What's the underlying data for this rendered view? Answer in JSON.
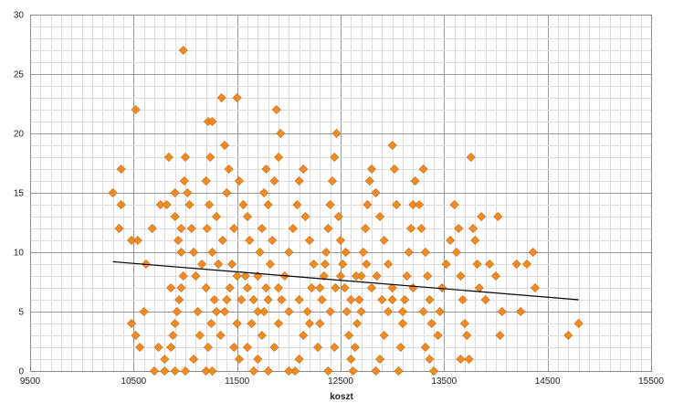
{
  "chart_data": {
    "type": "scatter",
    "title": "",
    "xlabel": "koszt",
    "ylabel": "",
    "xlim": [
      9500,
      15500
    ],
    "ylim": [
      0,
      30
    ],
    "x_ticks": [
      9500,
      10500,
      11500,
      12500,
      13500,
      14500,
      15500
    ],
    "y_ticks": [
      0,
      5,
      10,
      15,
      20,
      25,
      30
    ],
    "grid": true,
    "legend": "none",
    "marker_color": "#f08a24",
    "trendline": {
      "x": [
        10300,
        14800
      ],
      "y": [
        9.2,
        6.0
      ],
      "color": "#000000"
    },
    "points": [
      [
        10300,
        15
      ],
      [
        10380,
        17
      ],
      [
        10380,
        14
      ],
      [
        10360,
        12
      ],
      [
        10480,
        11
      ],
      [
        10540,
        11
      ],
      [
        10520,
        22
      ],
      [
        10620,
        9
      ],
      [
        10480,
        4
      ],
      [
        10520,
        3
      ],
      [
        10560,
        2
      ],
      [
        10600,
        5
      ],
      [
        10680,
        12
      ],
      [
        10760,
        14
      ],
      [
        10820,
        14
      ],
      [
        10840,
        18
      ],
      [
        10860,
        7
      ],
      [
        10900,
        15
      ],
      [
        10900,
        13
      ],
      [
        10930,
        11
      ],
      [
        10960,
        12
      ],
      [
        10960,
        10
      ],
      [
        10980,
        27
      ],
      [
        11000,
        18
      ],
      [
        10990,
        16
      ],
      [
        11020,
        15
      ],
      [
        11040,
        14
      ],
      [
        11060,
        12
      ],
      [
        11080,
        10
      ],
      [
        11100,
        8
      ],
      [
        10980,
        8
      ],
      [
        10960,
        7
      ],
      [
        10940,
        6
      ],
      [
        10920,
        5
      ],
      [
        10900,
        4
      ],
      [
        10880,
        3
      ],
      [
        10860,
        2
      ],
      [
        10800,
        1
      ],
      [
        10740,
        2
      ],
      [
        10700,
        0
      ],
      [
        10800,
        0
      ],
      [
        10900,
        0
      ],
      [
        11000,
        0
      ],
      [
        11080,
        1
      ],
      [
        11140,
        3
      ],
      [
        11120,
        5
      ],
      [
        11160,
        9
      ],
      [
        11200,
        7
      ],
      [
        11220,
        21
      ],
      [
        11260,
        21
      ],
      [
        11240,
        18
      ],
      [
        11200,
        16
      ],
      [
        11230,
        14
      ],
      [
        11210,
        12
      ],
      [
        11260,
        10
      ],
      [
        11300,
        13
      ],
      [
        11350,
        23
      ],
      [
        11380,
        19
      ],
      [
        11420,
        17
      ],
      [
        11400,
        15
      ],
      [
        11360,
        11
      ],
      [
        11320,
        9
      ],
      [
        11280,
        6
      ],
      [
        11250,
        4
      ],
      [
        11220,
        2
      ],
      [
        11200,
        0
      ],
      [
        11260,
        0
      ],
      [
        11340,
        3
      ],
      [
        11380,
        5
      ],
      [
        11430,
        7
      ],
      [
        11450,
        9
      ],
      [
        11470,
        12
      ],
      [
        11500,
        23
      ],
      [
        11520,
        16
      ],
      [
        11560,
        14
      ],
      [
        11600,
        13
      ],
      [
        11620,
        11
      ],
      [
        11580,
        8
      ],
      [
        11540,
        6
      ],
      [
        11500,
        4
      ],
      [
        11470,
        2
      ],
      [
        11520,
        1
      ],
      [
        11600,
        2
      ],
      [
        11640,
        4
      ],
      [
        11660,
        6
      ],
      [
        11700,
        8
      ],
      [
        11720,
        10
      ],
      [
        11740,
        12
      ],
      [
        11760,
        15
      ],
      [
        11780,
        17
      ],
      [
        11800,
        14
      ],
      [
        11840,
        11
      ],
      [
        11880,
        22
      ],
      [
        11920,
        20
      ],
      [
        11900,
        18
      ],
      [
        11860,
        16
      ],
      [
        11820,
        9
      ],
      [
        11780,
        7
      ],
      [
        11760,
        5
      ],
      [
        11740,
        3
      ],
      [
        11700,
        1
      ],
      [
        11660,
        0
      ],
      [
        11800,
        0
      ],
      [
        11860,
        2
      ],
      [
        11900,
        4
      ],
      [
        11930,
        6
      ],
      [
        11960,
        8
      ],
      [
        12000,
        10
      ],
      [
        12040,
        12
      ],
      [
        12080,
        14
      ],
      [
        12100,
        16
      ],
      [
        12140,
        17
      ],
      [
        12160,
        13
      ],
      [
        12200,
        11
      ],
      [
        12240,
        9
      ],
      [
        12220,
        7
      ],
      [
        12180,
        5
      ],
      [
        12140,
        3
      ],
      [
        12100,
        1
      ],
      [
        12060,
        0
      ],
      [
        12000,
        0
      ],
      [
        12280,
        2
      ],
      [
        12300,
        4
      ],
      [
        12320,
        6
      ],
      [
        12340,
        8
      ],
      [
        12360,
        10
      ],
      [
        12380,
        12
      ],
      [
        12400,
        14
      ],
      [
        12420,
        16
      ],
      [
        12440,
        18
      ],
      [
        12460,
        20
      ],
      [
        12480,
        13
      ],
      [
        12500,
        11
      ],
      [
        12520,
        9
      ],
      [
        12540,
        7
      ],
      [
        12560,
        5
      ],
      [
        12580,
        3
      ],
      [
        12600,
        1
      ],
      [
        12620,
        0
      ],
      [
        12380,
        0
      ],
      [
        12440,
        2
      ],
      [
        12640,
        2
      ],
      [
        12660,
        4
      ],
      [
        12680,
        6
      ],
      [
        12700,
        8
      ],
      [
        12720,
        10
      ],
      [
        12740,
        12
      ],
      [
        12760,
        14
      ],
      [
        12780,
        16
      ],
      [
        12800,
        17
      ],
      [
        12840,
        15
      ],
      [
        12880,
        13
      ],
      [
        12920,
        11
      ],
      [
        12960,
        9
      ],
      [
        13000,
        19
      ],
      [
        13020,
        17
      ],
      [
        13040,
        14
      ],
      [
        13000,
        7
      ],
      [
        12960,
        5
      ],
      [
        12920,
        3
      ],
      [
        12880,
        1
      ],
      [
        12840,
        0
      ],
      [
        13060,
        0
      ],
      [
        13080,
        2
      ],
      [
        13100,
        4
      ],
      [
        13120,
        6
      ],
      [
        13140,
        8
      ],
      [
        13160,
        10
      ],
      [
        13180,
        12
      ],
      [
        13200,
        14
      ],
      [
        13220,
        16
      ],
      [
        13260,
        14
      ],
      [
        13300,
        17
      ],
      [
        13280,
        12
      ],
      [
        13320,
        10
      ],
      [
        13340,
        8
      ],
      [
        13360,
        6
      ],
      [
        13380,
        4
      ],
      [
        13320,
        2
      ],
      [
        13360,
        1
      ],
      [
        13400,
        0
      ],
      [
        13440,
        3
      ],
      [
        13460,
        5
      ],
      [
        13480,
        7
      ],
      [
        13520,
        9
      ],
      [
        13560,
        11
      ],
      [
        13600,
        14
      ],
      [
        13620,
        10
      ],
      [
        13640,
        12
      ],
      [
        13660,
        8
      ],
      [
        13680,
        6
      ],
      [
        13700,
        4
      ],
      [
        13720,
        3
      ],
      [
        13740,
        1
      ],
      [
        13660,
        1
      ],
      [
        13760,
        18
      ],
      [
        13780,
        12
      ],
      [
        13800,
        11
      ],
      [
        13820,
        9
      ],
      [
        13840,
        7
      ],
      [
        13860,
        13
      ],
      [
        13900,
        6
      ],
      [
        13940,
        9
      ],
      [
        14000,
        8
      ],
      [
        14020,
        13
      ],
      [
        14060,
        5
      ],
      [
        14040,
        3
      ],
      [
        14200,
        9
      ],
      [
        14300,
        9
      ],
      [
        14360,
        10
      ],
      [
        14380,
        7
      ],
      [
        14240,
        5
      ],
      [
        14700,
        3
      ],
      [
        14800,
        4
      ],
      [
        12100,
        6
      ],
      [
        12200,
        4
      ],
      [
        12300,
        7
      ],
      [
        12400,
        5
      ],
      [
        12500,
        8
      ],
      [
        12600,
        6
      ],
      [
        12700,
        5
      ],
      [
        12800,
        7
      ],
      [
        12900,
        6
      ],
      [
        12350,
        9
      ],
      [
        12450,
        7
      ],
      [
        12550,
        10
      ],
      [
        12650,
        8
      ],
      [
        12750,
        9
      ],
      [
        12850,
        8
      ],
      [
        11700,
        5
      ],
      [
        11800,
        6
      ],
      [
        11900,
        7
      ],
      [
        12000,
        5
      ],
      [
        11600,
        7
      ],
      [
        11500,
        8
      ],
      [
        11400,
        6
      ],
      [
        11300,
        5
      ],
      [
        13000,
        6
      ],
      [
        13100,
        5
      ],
      [
        13200,
        7
      ],
      [
        13300,
        5
      ]
    ]
  }
}
